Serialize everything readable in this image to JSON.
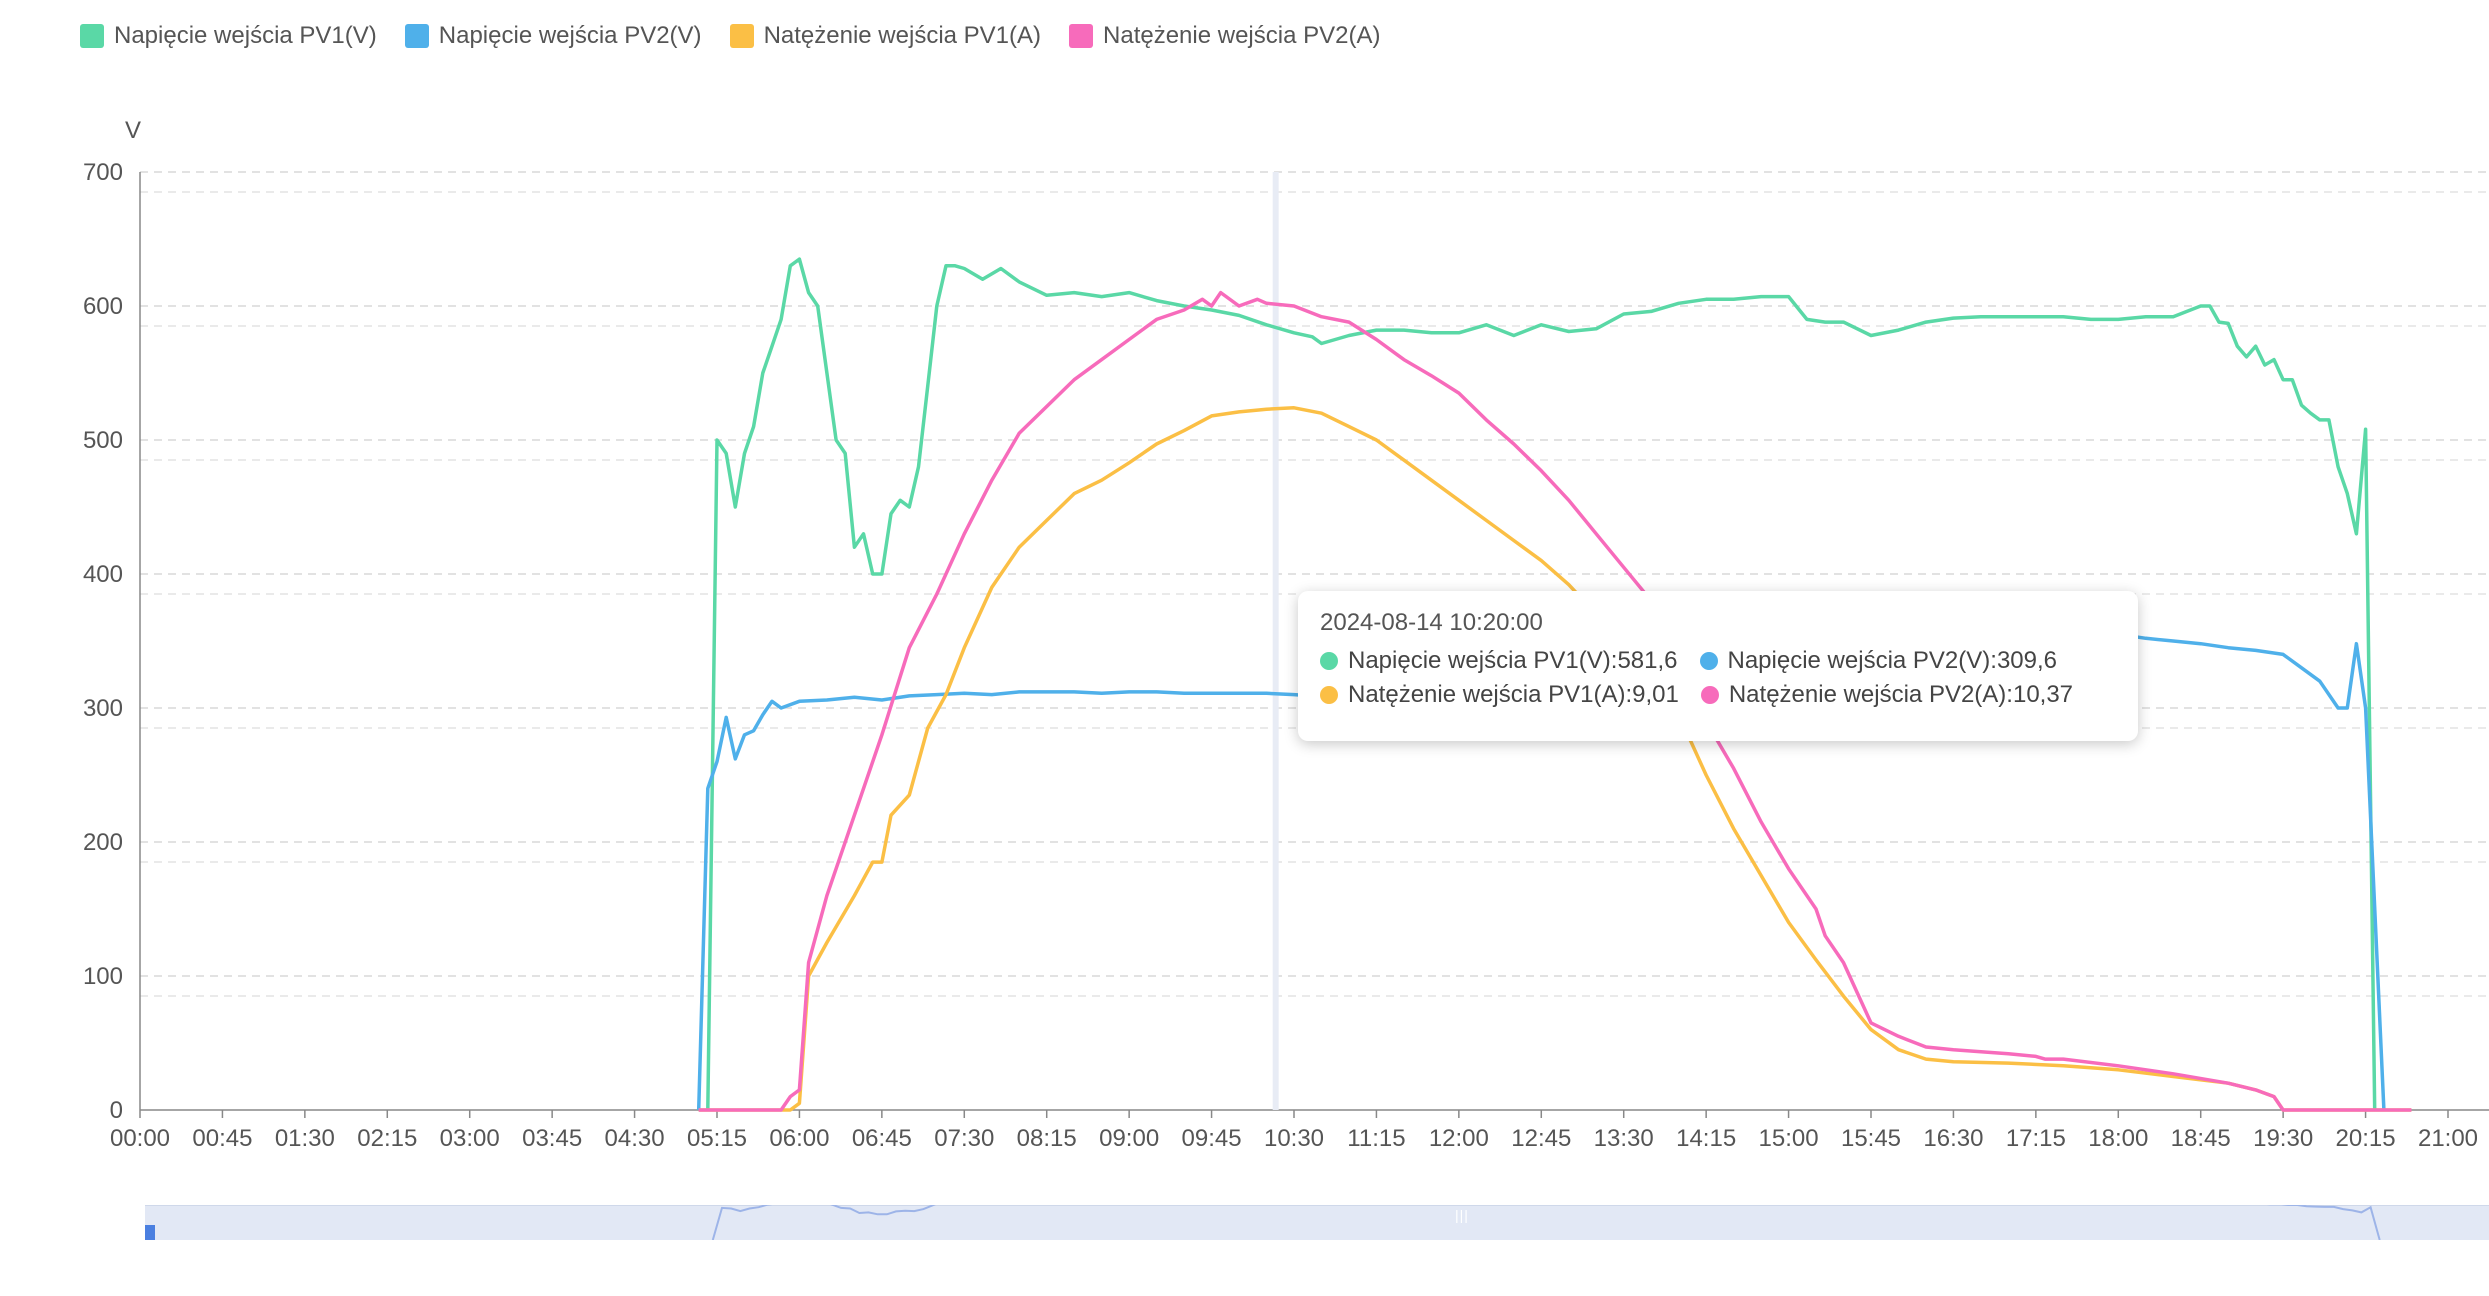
{
  "legend": [
    {
      "label": "Napięcie wejścia PV1(V)",
      "color": "#5ad8a6"
    },
    {
      "label": "Napięcie wejścia PV2(V)",
      "color": "#4fb0ea"
    },
    {
      "label": "Natężenie wejścia PV1(A)",
      "color": "#fbbf45"
    },
    {
      "label": "Natężenie wejścia PV2(A)",
      "color": "#f76bbb"
    }
  ],
  "tooltip": {
    "time": "2024-08-14 10:20:00",
    "entries": [
      {
        "label": "Napięcie wejścia PV1(V):581,6",
        "color": "#5ad8a6"
      },
      {
        "label": "Napięcie wejścia PV2(V):309,6",
        "color": "#4fb0ea"
      },
      {
        "label": "Natężenie wejścia PV1(A):9,01",
        "color": "#fbbf45"
      },
      {
        "label": "Natężenie wejścia PV2(A):10,37",
        "color": "#f76bbb"
      }
    ]
  },
  "chart_data": {
    "type": "line",
    "ylabel": "V",
    "ylim": [
      0,
      700
    ],
    "yticks": [
      "0",
      "100",
      "200",
      "300",
      "400",
      "500",
      "600",
      "700"
    ],
    "xlim": [
      "00:00",
      "21:00"
    ],
    "xticks": [
      "00:00",
      "00:45",
      "01:30",
      "02:15",
      "03:00",
      "03:45",
      "04:30",
      "05:15",
      "06:00",
      "06:45",
      "07:30",
      "08:15",
      "09:00",
      "09:45",
      "10:30",
      "11:15",
      "12:00",
      "12:45",
      "13:30",
      "14:15",
      "15:00",
      "15:45",
      "16:30",
      "17:15",
      "18:00",
      "18:45",
      "19:30",
      "20:15",
      "21:00"
    ],
    "grid": true,
    "legend_position": "top-left",
    "highlight_x": "10:20",
    "series": [
      {
        "name": "Napięcie wejścia PV1(V)",
        "color": "#5ad8a6",
        "points": [
          [
            "05:10",
            0
          ],
          [
            "05:15",
            500
          ],
          [
            "05:20",
            490
          ],
          [
            "05:25",
            450
          ],
          [
            "05:30",
            490
          ],
          [
            "05:35",
            510
          ],
          [
            "05:40",
            550
          ],
          [
            "05:45",
            570
          ],
          [
            "05:50",
            590
          ],
          [
            "05:55",
            630
          ],
          [
            "06:00",
            635
          ],
          [
            "06:05",
            610
          ],
          [
            "06:10",
            600
          ],
          [
            "06:15",
            550
          ],
          [
            "06:20",
            500
          ],
          [
            "06:25",
            490
          ],
          [
            "06:30",
            420
          ],
          [
            "06:35",
            430
          ],
          [
            "06:40",
            400
          ],
          [
            "06:45",
            400
          ],
          [
            "06:50",
            445
          ],
          [
            "06:55",
            455
          ],
          [
            "07:00",
            450
          ],
          [
            "07:05",
            480
          ],
          [
            "07:10",
            540
          ],
          [
            "07:15",
            600
          ],
          [
            "07:20",
            630
          ],
          [
            "07:25",
            630
          ],
          [
            "07:30",
            628
          ],
          [
            "07:40",
            620
          ],
          [
            "07:50",
            628
          ],
          [
            "08:00",
            618
          ],
          [
            "08:15",
            608
          ],
          [
            "08:30",
            610
          ],
          [
            "08:45",
            607
          ],
          [
            "09:00",
            610
          ],
          [
            "09:15",
            604
          ],
          [
            "09:30",
            600
          ],
          [
            "09:45",
            597
          ],
          [
            "10:00",
            593
          ],
          [
            "10:15",
            586
          ],
          [
            "10:30",
            580
          ],
          [
            "10:40",
            577
          ],
          [
            "10:45",
            572
          ],
          [
            "11:00",
            578
          ],
          [
            "11:15",
            582
          ],
          [
            "11:30",
            582
          ],
          [
            "11:45",
            580
          ],
          [
            "12:00",
            580
          ],
          [
            "12:15",
            586
          ],
          [
            "12:30",
            578
          ],
          [
            "12:45",
            586
          ],
          [
            "13:00",
            581
          ],
          [
            "13:15",
            583
          ],
          [
            "13:30",
            594
          ],
          [
            "13:45",
            596
          ],
          [
            "14:00",
            602
          ],
          [
            "14:15",
            605
          ],
          [
            "14:30",
            605
          ],
          [
            "14:45",
            607
          ],
          [
            "15:00",
            607
          ],
          [
            "15:10",
            590
          ],
          [
            "15:20",
            588
          ],
          [
            "15:30",
            588
          ],
          [
            "15:45",
            578
          ],
          [
            "16:00",
            582
          ],
          [
            "16:15",
            588
          ],
          [
            "16:30",
            591
          ],
          [
            "16:45",
            592
          ],
          [
            "17:00",
            592
          ],
          [
            "17:15",
            592
          ],
          [
            "17:30",
            592
          ],
          [
            "17:45",
            590
          ],
          [
            "18:00",
            590
          ],
          [
            "18:15",
            592
          ],
          [
            "18:30",
            592
          ],
          [
            "18:45",
            600
          ],
          [
            "18:50",
            600
          ],
          [
            "18:55",
            588
          ],
          [
            "19:00",
            587
          ],
          [
            "19:05",
            570
          ],
          [
            "19:10",
            562
          ],
          [
            "19:15",
            570
          ],
          [
            "19:20",
            556
          ],
          [
            "19:25",
            560
          ],
          [
            "19:30",
            545
          ],
          [
            "19:35",
            545
          ],
          [
            "19:40",
            526
          ],
          [
            "19:45",
            520
          ],
          [
            "19:50",
            515
          ],
          [
            "19:55",
            515
          ],
          [
            "20:00",
            480
          ],
          [
            "20:05",
            460
          ],
          [
            "20:10",
            430
          ],
          [
            "20:15",
            508
          ],
          [
            "20:20",
            0
          ]
        ]
      },
      {
        "name": "Napięcie wejścia PV2(V)",
        "color": "#4fb0ea",
        "points": [
          [
            "05:05",
            0
          ],
          [
            "05:10",
            240
          ],
          [
            "05:15",
            260
          ],
          [
            "05:20",
            293
          ],
          [
            "05:25",
            262
          ],
          [
            "05:30",
            280
          ],
          [
            "05:35",
            283
          ],
          [
            "05:40",
            295
          ],
          [
            "05:45",
            305
          ],
          [
            "05:50",
            300
          ],
          [
            "06:00",
            305
          ],
          [
            "06:15",
            306
          ],
          [
            "06:30",
            308
          ],
          [
            "06:45",
            306
          ],
          [
            "07:00",
            309
          ],
          [
            "07:15",
            310
          ],
          [
            "07:30",
            311
          ],
          [
            "07:45",
            310
          ],
          [
            "08:00",
            312
          ],
          [
            "08:15",
            312
          ],
          [
            "08:30",
            312
          ],
          [
            "08:45",
            311
          ],
          [
            "09:00",
            312
          ],
          [
            "09:15",
            312
          ],
          [
            "09:30",
            311
          ],
          [
            "09:45",
            311
          ],
          [
            "10:00",
            311
          ],
          [
            "10:15",
            311
          ],
          [
            "10:30",
            310
          ],
          [
            "10:40",
            309
          ],
          [
            "18:00",
            355
          ],
          [
            "18:15",
            352
          ],
          [
            "18:30",
            350
          ],
          [
            "18:45",
            348
          ],
          [
            "19:00",
            345
          ],
          [
            "19:15",
            343
          ],
          [
            "19:30",
            340
          ],
          [
            "19:40",
            330
          ],
          [
            "19:50",
            320
          ],
          [
            "20:00",
            300
          ],
          [
            "20:05",
            300
          ],
          [
            "20:10",
            348
          ],
          [
            "20:15",
            300
          ],
          [
            "20:25",
            0
          ]
        ]
      },
      {
        "name": "Natężenie wejścia PV1(A)",
        "color": "#fbbf45",
        "points": [
          [
            "05:05",
            0
          ],
          [
            "05:55",
            0
          ],
          [
            "06:00",
            5
          ],
          [
            "06:05",
            100
          ],
          [
            "06:15",
            125
          ],
          [
            "06:30",
            160
          ],
          [
            "06:40",
            185
          ],
          [
            "06:45",
            185
          ],
          [
            "06:50",
            220
          ],
          [
            "07:00",
            235
          ],
          [
            "07:10",
            285
          ],
          [
            "07:20",
            310
          ],
          [
            "07:30",
            345
          ],
          [
            "07:45",
            390
          ],
          [
            "08:00",
            420
          ],
          [
            "08:15",
            440
          ],
          [
            "08:30",
            460
          ],
          [
            "08:45",
            470
          ],
          [
            "09:00",
            483
          ],
          [
            "09:15",
            497
          ],
          [
            "09:30",
            507
          ],
          [
            "09:45",
            518
          ],
          [
            "10:00",
            521
          ],
          [
            "10:15",
            523
          ],
          [
            "10:30",
            524
          ],
          [
            "10:45",
            520
          ],
          [
            "11:00",
            510
          ],
          [
            "11:15",
            500
          ],
          [
            "11:30",
            485
          ],
          [
            "11:45",
            470
          ],
          [
            "12:00",
            455
          ],
          [
            "12:15",
            440
          ],
          [
            "12:30",
            425
          ],
          [
            "12:45",
            410
          ],
          [
            "13:00",
            392
          ],
          [
            "13:15",
            370
          ],
          [
            "13:30",
            350
          ],
          [
            "13:45",
            325
          ],
          [
            "14:00",
            295
          ],
          [
            "14:15",
            250
          ],
          [
            "14:30",
            210
          ],
          [
            "14:45",
            175
          ],
          [
            "15:00",
            140
          ],
          [
            "15:15",
            112
          ],
          [
            "15:30",
            85
          ],
          [
            "15:45",
            60
          ],
          [
            "16:00",
            45
          ],
          [
            "16:15",
            38
          ],
          [
            "16:30",
            36
          ],
          [
            "17:00",
            35
          ],
          [
            "17:30",
            33
          ],
          [
            "18:00",
            30
          ],
          [
            "18:30",
            25
          ],
          [
            "19:00",
            20
          ],
          [
            "19:15",
            15
          ],
          [
            "19:25",
            10
          ],
          [
            "19:30",
            0
          ],
          [
            "20:40",
            0
          ]
        ]
      },
      {
        "name": "Natężenie wejścia PV2(A)",
        "color": "#f76bbb",
        "points": [
          [
            "05:05",
            0
          ],
          [
            "05:50",
            0
          ],
          [
            "05:55",
            10
          ],
          [
            "06:00",
            15
          ],
          [
            "06:05",
            110
          ],
          [
            "06:15",
            160
          ],
          [
            "06:30",
            220
          ],
          [
            "06:45",
            280
          ],
          [
            "07:00",
            345
          ],
          [
            "07:15",
            385
          ],
          [
            "07:30",
            430
          ],
          [
            "07:45",
            470
          ],
          [
            "08:00",
            505
          ],
          [
            "08:15",
            525
          ],
          [
            "08:30",
            545
          ],
          [
            "08:45",
            560
          ],
          [
            "09:00",
            575
          ],
          [
            "09:15",
            590
          ],
          [
            "09:30",
            597
          ],
          [
            "09:40",
            605
          ],
          [
            "09:45",
            600
          ],
          [
            "09:50",
            610
          ],
          [
            "10:00",
            600
          ],
          [
            "10:10",
            605
          ],
          [
            "10:15",
            602
          ],
          [
            "10:30",
            600
          ],
          [
            "10:45",
            592
          ],
          [
            "11:00",
            588
          ],
          [
            "11:15",
            575
          ],
          [
            "11:30",
            560
          ],
          [
            "11:45",
            548
          ],
          [
            "12:00",
            535
          ],
          [
            "12:15",
            515
          ],
          [
            "12:30",
            497
          ],
          [
            "12:45",
            477
          ],
          [
            "13:00",
            455
          ],
          [
            "13:15",
            430
          ],
          [
            "13:30",
            405
          ],
          [
            "13:45",
            380
          ],
          [
            "14:00",
            340
          ],
          [
            "14:15",
            290
          ],
          [
            "14:30",
            255
          ],
          [
            "14:45",
            215
          ],
          [
            "15:00",
            180
          ],
          [
            "15:15",
            150
          ],
          [
            "15:20",
            130
          ],
          [
            "15:30",
            110
          ],
          [
            "15:45",
            65
          ],
          [
            "16:00",
            55
          ],
          [
            "16:15",
            47
          ],
          [
            "16:30",
            45
          ],
          [
            "17:00",
            42
          ],
          [
            "17:15",
            40
          ],
          [
            "17:20",
            38
          ],
          [
            "17:30",
            38
          ],
          [
            "18:00",
            33
          ],
          [
            "18:30",
            27
          ],
          [
            "19:00",
            20
          ],
          [
            "19:15",
            15
          ],
          [
            "19:25",
            10
          ],
          [
            "19:30",
            0
          ],
          [
            "20:40",
            0
          ]
        ]
      }
    ]
  }
}
